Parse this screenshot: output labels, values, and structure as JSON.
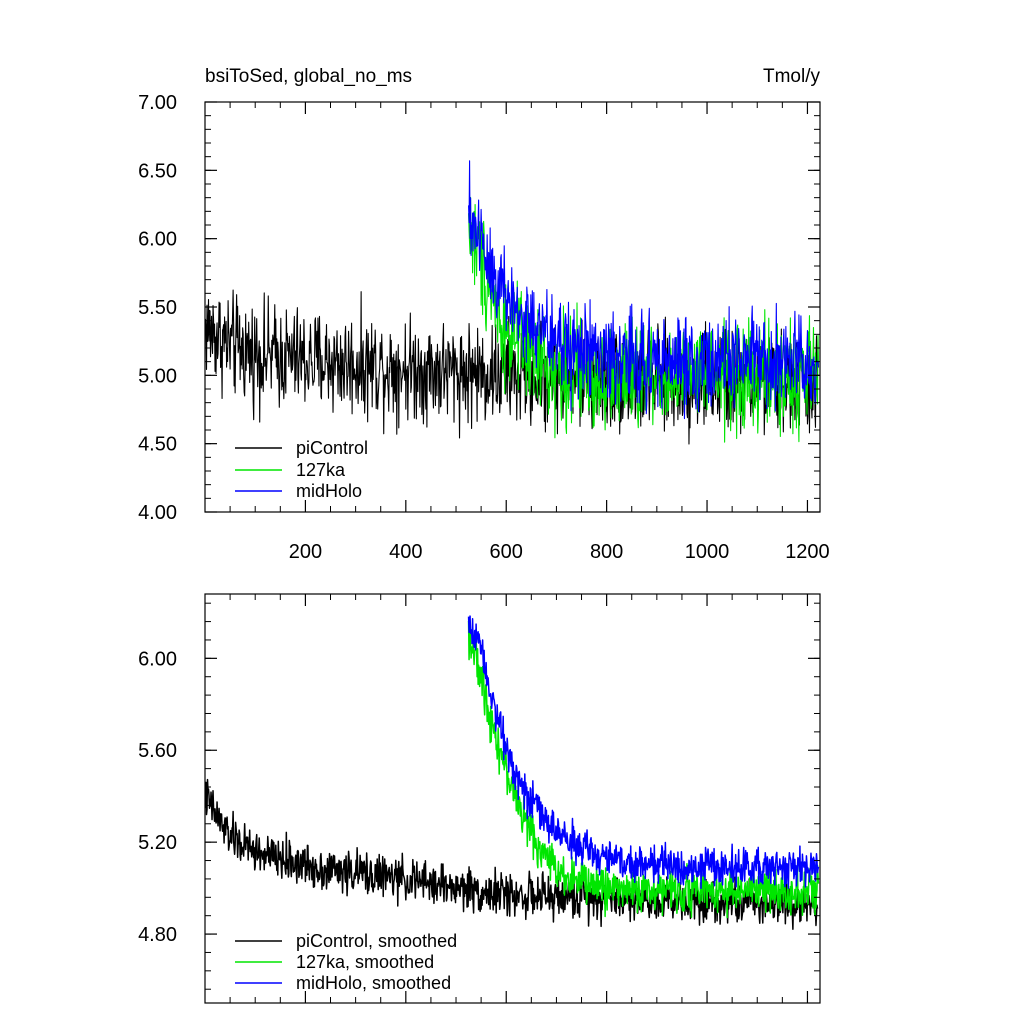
{
  "chart_data": [
    {
      "type": "line",
      "title": "bsiToSed, global_no_ms",
      "units": "Tmol/y",
      "xlim": [
        0,
        1225
      ],
      "ylim": [
        4.0,
        7.0
      ],
      "xticks": [
        200,
        400,
        600,
        800,
        1000,
        1200
      ],
      "xtick_labels": [
        "200",
        "400",
        "600",
        "800",
        "1000",
        "1200"
      ],
      "yticks": [
        4.0,
        4.5,
        5.0,
        5.5,
        6.0,
        6.5,
        7.0
      ],
      "ytick_labels": [
        "4.00",
        "4.50",
        "5.00",
        "5.50",
        "6.00",
        "6.50",
        "7.00"
      ],
      "grid": false,
      "legend_position": "bottom-left",
      "series": [
        {
          "name": "piControl",
          "color": "#000000",
          "x_start": 1,
          "x_end": 1220,
          "x_step": 20,
          "y": [
            5.35,
            5.3,
            5.24,
            5.2,
            5.18,
            5.16,
            5.15,
            5.14,
            5.13,
            5.12,
            5.11,
            5.1,
            5.1,
            5.09,
            5.08,
            5.08,
            5.07,
            5.07,
            5.06,
            5.06,
            5.05,
            5.05,
            5.04,
            5.04,
            5.03,
            5.03,
            5.02,
            5.02,
            5.01,
            5.01,
            5.0,
            5.0,
            4.99,
            4.99,
            4.98,
            4.98,
            4.98,
            4.97,
            4.97,
            4.97,
            4.96,
            4.96,
            4.96,
            4.96,
            4.95,
            4.95,
            4.95,
            4.95,
            4.95,
            4.95,
            4.95,
            4.95,
            4.94,
            4.94,
            4.94,
            4.94,
            4.94,
            4.94,
            4.94,
            4.94,
            4.94,
            4.94
          ],
          "noise": 0.16
        },
        {
          "name": "127ka",
          "color": "#00e600",
          "x_start": 525,
          "x_end": 1222,
          "x_step": 20,
          "y": [
            6.1,
            5.9,
            5.7,
            5.45,
            5.32,
            5.22,
            5.15,
            5.1,
            5.06,
            5.04,
            5.02,
            5.01,
            5.0,
            5.0,
            4.99,
            4.99,
            4.99,
            4.99,
            4.99,
            4.99,
            4.98,
            4.98,
            4.98,
            4.98,
            4.98,
            4.98,
            4.98,
            4.98,
            4.98,
            4.98,
            4.98,
            4.98,
            4.98,
            4.98,
            4.98,
            4.98
          ],
          "noise": 0.17
        },
        {
          "name": "midHolo",
          "color": "#0000ff",
          "x_start": 525,
          "x_end": 1222,
          "x_step": 20,
          "y": [
            6.15,
            6.05,
            5.85,
            5.7,
            5.55,
            5.45,
            5.38,
            5.32,
            5.28,
            5.24,
            5.21,
            5.19,
            5.17,
            5.15,
            5.14,
            5.13,
            5.12,
            5.11,
            5.11,
            5.1,
            5.1,
            5.1,
            5.09,
            5.09,
            5.09,
            5.09,
            5.09,
            5.09,
            5.09,
            5.09,
            5.09,
            5.09,
            5.09,
            5.09,
            5.09,
            5.09
          ],
          "noise": 0.15
        }
      ]
    },
    {
      "type": "line",
      "title": "",
      "xlim": [
        0,
        1225
      ],
      "ylim": [
        4.5,
        6.28
      ],
      "xticks": [
        200,
        400,
        600,
        800,
        1000,
        1200
      ],
      "yticks": [
        4.8,
        5.2,
        5.6,
        6.0
      ],
      "ytick_labels": [
        "4.80",
        "5.20",
        "5.60",
        "6.00"
      ],
      "grid": false,
      "legend_position": "bottom-left",
      "series": [
        {
          "name": "piControl, smoothed",
          "color": "#000000",
          "x_start": 1,
          "x_end": 1220,
          "x_step": 20,
          "y": [
            5.4,
            5.32,
            5.25,
            5.21,
            5.18,
            5.16,
            5.14,
            5.13,
            5.12,
            5.11,
            5.1,
            5.09,
            5.08,
            5.08,
            5.07,
            5.07,
            5.06,
            5.06,
            5.05,
            5.04,
            5.04,
            5.03,
            5.02,
            5.02,
            5.01,
            5.0,
            5.0,
            4.99,
            4.98,
            4.98,
            4.97,
            4.97,
            4.97,
            4.96,
            4.96,
            4.96,
            4.96,
            4.96,
            4.96,
            4.96,
            4.96,
            4.96,
            4.95,
            4.95,
            4.95,
            4.95,
            4.95,
            4.95,
            4.95,
            4.95,
            4.95,
            4.95,
            4.94,
            4.94,
            4.94,
            4.94,
            4.94,
            4.94,
            4.94,
            4.94,
            4.94,
            4.94
          ],
          "noise": 0.045
        },
        {
          "name": "127ka, smoothed",
          "color": "#00e600",
          "x_start": 525,
          "x_end": 1222,
          "x_step": 20,
          "y": [
            6.12,
            5.95,
            5.78,
            5.62,
            5.48,
            5.36,
            5.26,
            5.18,
            5.12,
            5.08,
            5.05,
            5.03,
            5.02,
            5.01,
            5.0,
            5.0,
            5.0,
            4.99,
            4.99,
            4.99,
            4.99,
            4.99,
            4.99,
            4.99,
            4.99,
            4.99,
            4.99,
            4.99,
            4.99,
            4.99,
            4.99,
            4.99,
            4.99,
            4.99,
            4.99,
            4.99
          ],
          "noise": 0.045
        },
        {
          "name": "midHolo, smoothed",
          "color": "#0000ff",
          "x_start": 525,
          "x_end": 1222,
          "x_step": 20,
          "y": [
            6.14,
            6.1,
            5.9,
            5.72,
            5.58,
            5.48,
            5.4,
            5.33,
            5.28,
            5.24,
            5.21,
            5.18,
            5.16,
            5.14,
            5.13,
            5.12,
            5.11,
            5.11,
            5.1,
            5.1,
            5.1,
            5.1,
            5.1,
            5.09,
            5.09,
            5.09,
            5.09,
            5.09,
            5.09,
            5.09,
            5.09,
            5.09,
            5.09,
            5.09,
            5.09,
            5.09
          ],
          "noise": 0.04
        }
      ]
    }
  ]
}
